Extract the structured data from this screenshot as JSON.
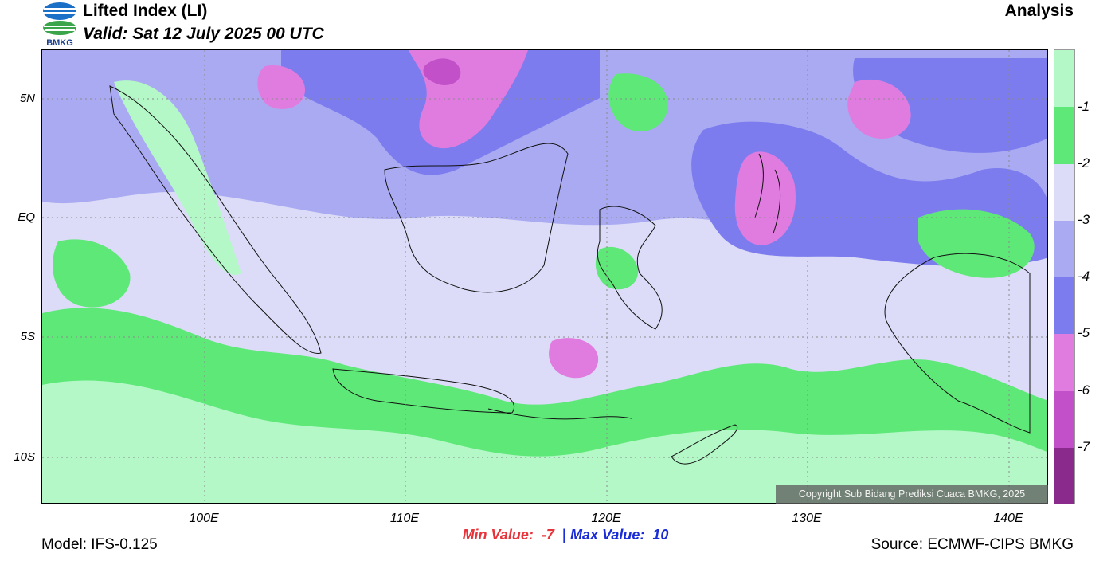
{
  "header": {
    "title": "Lifted Index (LI)",
    "valid": "Valid: Sat 12 July 2025 00 UTC",
    "product": "Analysis",
    "logo_text": "BMKG"
  },
  "map": {
    "lat_labels": [
      "5N",
      "EQ",
      "5S",
      "10S"
    ],
    "lon_labels": [
      "100E",
      "110E",
      "120E",
      "130E",
      "140E"
    ],
    "copyright": "Copyright Sub Bidang Prediksi Cuaca BMKG, 2025"
  },
  "colorbar": {
    "labels": [
      "-1",
      "-2",
      "-3",
      "-4",
      "-5",
      "-6",
      "-7"
    ],
    "colors": [
      "#b4f8c8",
      "#5ee878",
      "#dcdcf8",
      "#aaaaf2",
      "#7c7cee",
      "#e07ce0",
      "#c250c8",
      "#8a2a8c"
    ]
  },
  "stats": {
    "min_label": "Min Value:",
    "min_value": "-7",
    "separator": "|",
    "max_label": "Max Value:",
    "max_value": "10"
  },
  "footer": {
    "model": "Model: IFS-0.125",
    "source": "Source: ECMWF-CIPS BMKG"
  }
}
